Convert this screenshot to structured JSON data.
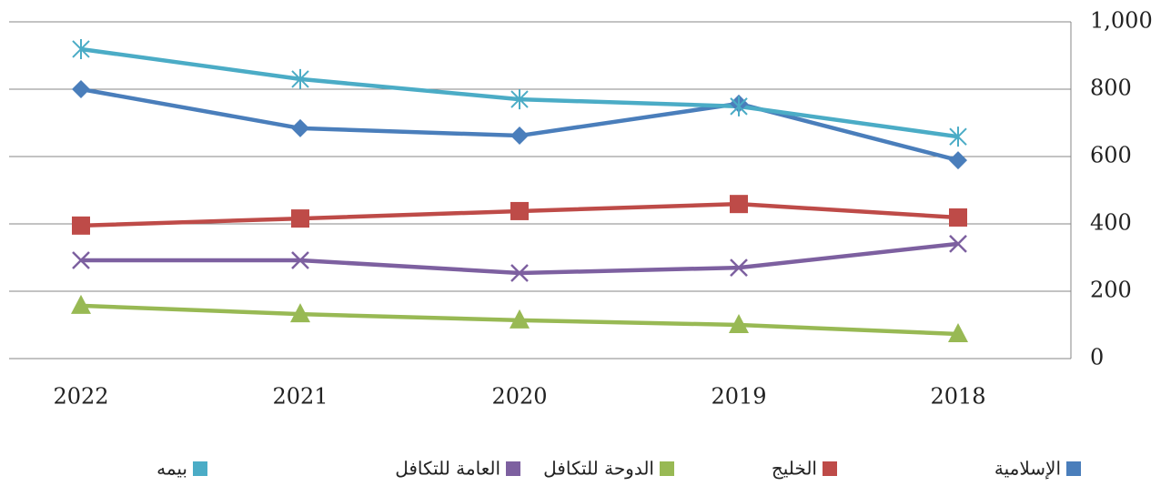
{
  "chart_data": {
    "type": "line",
    "categories": [
      "2022",
      "2021",
      "2020",
      "2019",
      "2018"
    ],
    "ylim": [
      0,
      1000
    ],
    "yticks": [
      0,
      200,
      400,
      600,
      800,
      {
        "value": 1000,
        "label": "1,000"
      }
    ],
    "grid": true,
    "legend": "bottom",
    "series": [
      {
        "name": "الإسلامية",
        "color": "#4a7ebb",
        "marker": "diamond",
        "values": [
          800,
          684,
          662,
          757,
          589
        ]
      },
      {
        "name": "الخليج",
        "color": "#be4b48",
        "marker": "square",
        "values": [
          395,
          416,
          438,
          459,
          419
        ]
      },
      {
        "name": "الدوحة للتكافل",
        "color": "#98b954",
        "marker": "triangle",
        "values": [
          157,
          132,
          114,
          100,
          73
        ]
      },
      {
        "name": "العامة للتكافل",
        "color": "#7d60a0",
        "marker": "x",
        "values": [
          292,
          292,
          254,
          270,
          341
        ]
      },
      {
        "name": "بيمه",
        "color": "#4bacc6",
        "marker": "star",
        "values": [
          919,
          830,
          770,
          749,
          659
        ]
      }
    ]
  }
}
